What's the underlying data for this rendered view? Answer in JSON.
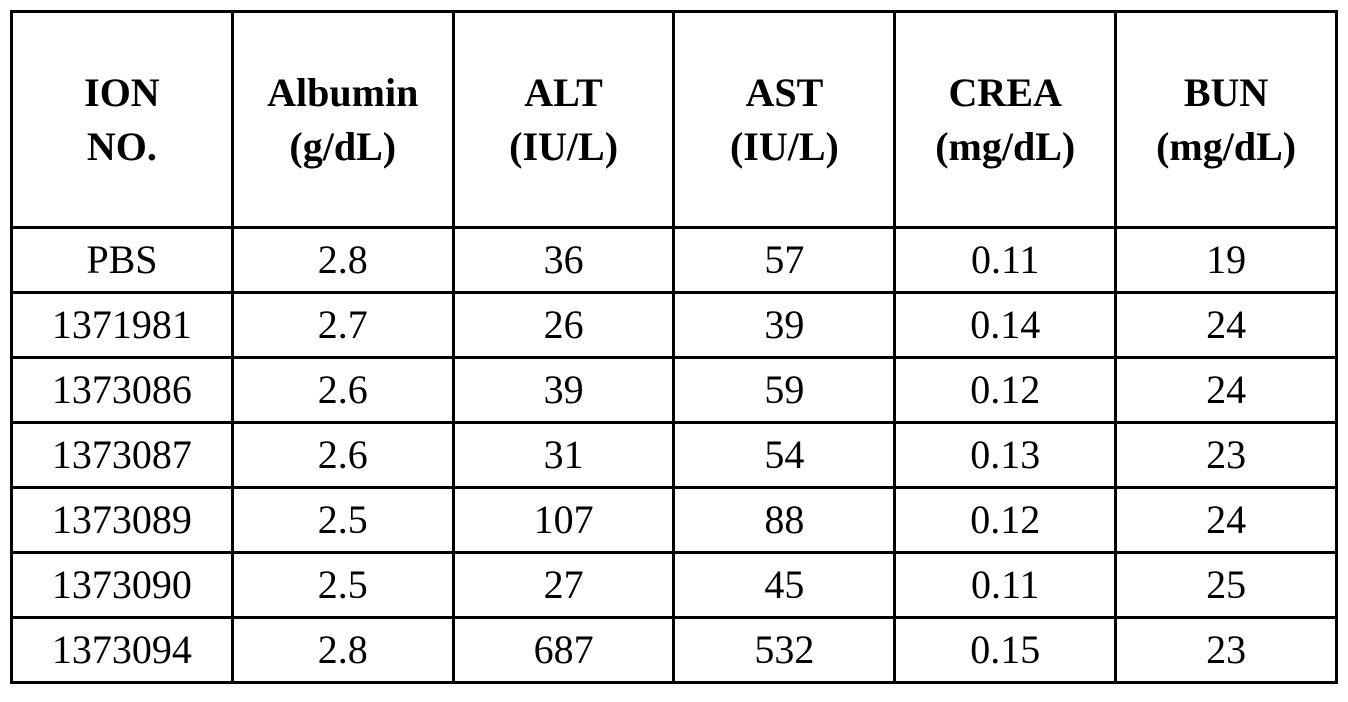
{
  "table": {
    "border_color": "#000000",
    "text_color": "#000000",
    "background_color": "#ffffff",
    "header": [
      {
        "lines": [
          "ION",
          "NO."
        ]
      },
      {
        "lines": [
          "Albumin",
          "(g/dL)"
        ]
      },
      {
        "lines": [
          "ALT",
          "(IU/L)"
        ]
      },
      {
        "lines": [
          "AST",
          "(IU/L)"
        ]
      },
      {
        "lines": [
          "CREA",
          "(mg/dL)"
        ]
      },
      {
        "lines": [
          "BUN",
          "(mg/dL)"
        ]
      }
    ],
    "rows": [
      [
        "PBS",
        "2.8",
        "36",
        "57",
        "0.11",
        "19"
      ],
      [
        "1371981",
        "2.7",
        "26",
        "39",
        "0.14",
        "24"
      ],
      [
        "1373086",
        "2.6",
        "39",
        "59",
        "0.12",
        "24"
      ],
      [
        "1373087",
        "2.6",
        "31",
        "54",
        "0.13",
        "23"
      ],
      [
        "1373089",
        "2.5",
        "107",
        "88",
        "0.12",
        "24"
      ],
      [
        "1373090",
        "2.5",
        "27",
        "45",
        "0.11",
        "25"
      ],
      [
        "1373094",
        "2.8",
        "687",
        "532",
        "0.15",
        "23"
      ]
    ]
  },
  "chart_data": {
    "type": "table",
    "title": "",
    "columns": [
      "ION NO.",
      "Albumin (g/dL)",
      "ALT (IU/L)",
      "AST (IU/L)",
      "CREA (mg/dL)",
      "BUN (mg/dL)"
    ],
    "rows": [
      [
        "PBS",
        2.8,
        36,
        57,
        0.11,
        19
      ],
      [
        "1371981",
        2.7,
        26,
        39,
        0.14,
        24
      ],
      [
        "1373086",
        2.6,
        39,
        59,
        0.12,
        24
      ],
      [
        "1373087",
        2.6,
        31,
        54,
        0.13,
        23
      ],
      [
        "1373089",
        2.5,
        107,
        88,
        0.12,
        24
      ],
      [
        "1373090",
        2.5,
        27,
        45,
        0.11,
        25
      ],
      [
        "1373094",
        2.8,
        687,
        532,
        0.15,
        23
      ]
    ],
    "layout": {
      "grid": "full-borders",
      "header_style": "bold",
      "cell_alignment": "center"
    }
  }
}
